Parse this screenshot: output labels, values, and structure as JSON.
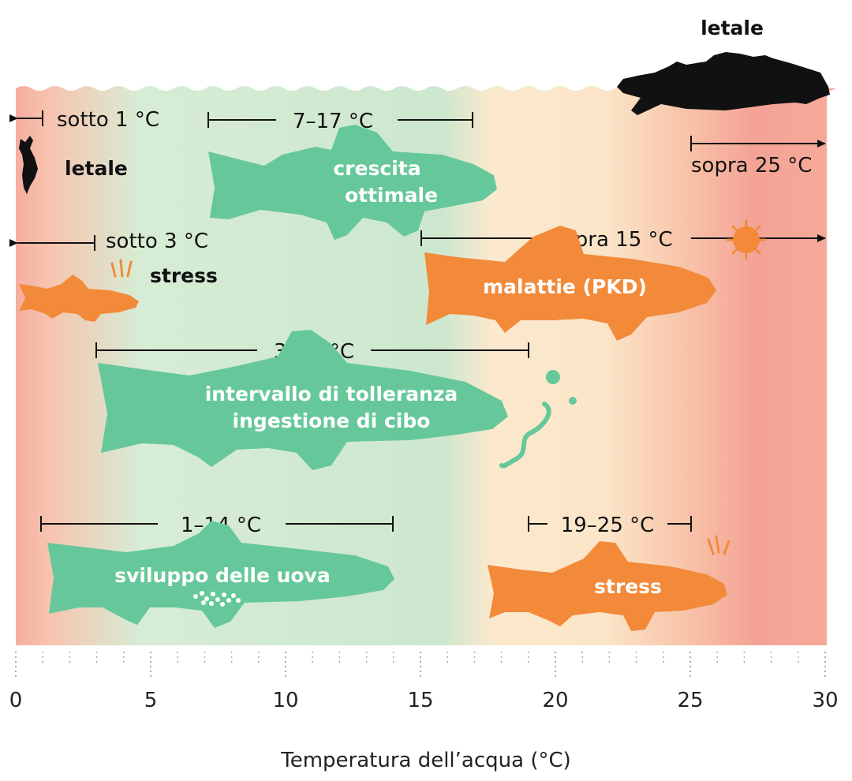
{
  "axis": {
    "title": "Temperatura dell’acqua (°C)",
    "min": 0,
    "max": 30,
    "major_ticks": [
      "0",
      "5",
      "10",
      "15",
      "20",
      "25",
      "30"
    ]
  },
  "colors": {
    "green": "#66c89a",
    "orange": "#f28a3a",
    "black": "#111111",
    "bg_cold": "#f6b0a0",
    "bg_optimal": "#cfe8d3",
    "bg_warm": "#fbe8cc",
    "bg_hot": "#f4a090"
  },
  "top": {
    "lethal_label": "letale"
  },
  "ranges": {
    "cold_lethal": {
      "label": "sotto 1 °C",
      "side_label": "letale"
    },
    "optimal_growth": {
      "label": "7–17 °C",
      "fish_line1": "crescita",
      "fish_line2": "ottimale"
    },
    "hot_lethal": {
      "label": "sopra 25 °C"
    },
    "cold_stress": {
      "label": "sotto 3 °C",
      "side_label": "stress"
    },
    "disease": {
      "label": "sopra 15 °C",
      "fish_text": "malattie (PKD)"
    },
    "tolerance": {
      "label": "3–19 °C",
      "fish_line1": "intervallo di tolleranza",
      "fish_line2": "ingestione di cibo"
    },
    "eggs": {
      "label": "1–14 °C",
      "fish_text": "sviluppo delle uova"
    },
    "heat_stress": {
      "label": "19–25 °C",
      "fish_text": "stress"
    }
  }
}
